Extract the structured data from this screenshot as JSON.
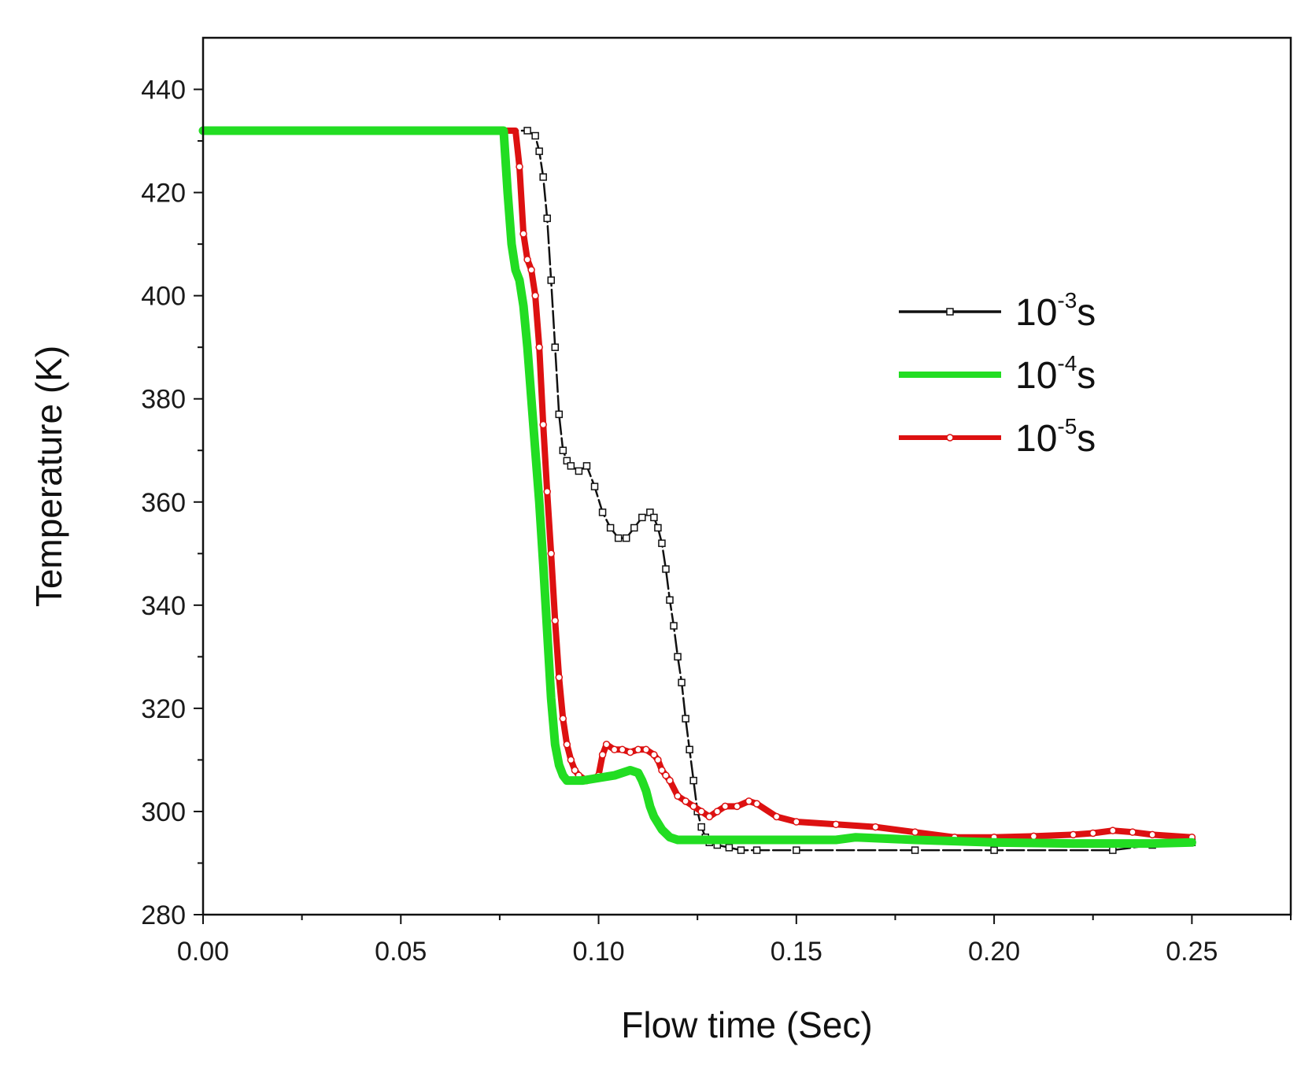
{
  "chart_data": {
    "type": "line",
    "xlabel": "Flow time (Sec)",
    "ylabel": "Temperature (K)",
    "xlim": [
      0,
      0.275
    ],
    "ylim": [
      280,
      450
    ],
    "xticks": [
      0.0,
      0.05,
      0.1,
      0.15,
      0.2,
      0.25
    ],
    "xtick_labels": [
      "0.00",
      "0.05",
      "0.10",
      "0.15",
      "0.20",
      "0.25"
    ],
    "yticks": [
      280,
      300,
      320,
      340,
      360,
      380,
      400,
      420,
      440
    ],
    "ytick_labels": [
      "280",
      "300",
      "320",
      "340",
      "360",
      "380",
      "400",
      "420",
      "440"
    ],
    "grid": false,
    "legend_position": "right-middle",
    "series": [
      {
        "name": "10-3s",
        "legend_base": "10",
        "legend_exp": "-3",
        "legend_unit": "s",
        "color": "#111111",
        "marker": "hollow-square",
        "x": [
          0.0,
          0.082,
          0.084,
          0.085,
          0.086,
          0.087,
          0.088,
          0.089,
          0.09,
          0.091,
          0.092,
          0.093,
          0.095,
          0.097,
          0.099,
          0.101,
          0.103,
          0.105,
          0.107,
          0.109,
          0.111,
          0.113,
          0.114,
          0.115,
          0.116,
          0.117,
          0.118,
          0.119,
          0.12,
          0.121,
          0.122,
          0.123,
          0.124,
          0.125,
          0.126,
          0.127,
          0.128,
          0.13,
          0.133,
          0.136,
          0.14,
          0.15,
          0.18,
          0.2,
          0.23,
          0.24,
          0.25
        ],
        "y": [
          432,
          432,
          431,
          428,
          423,
          415,
          403,
          390,
          377,
          370,
          368,
          367,
          366,
          367,
          363,
          358,
          355,
          353,
          353,
          355,
          357,
          358,
          357,
          355,
          352,
          347,
          341,
          336,
          330,
          325,
          318,
          312,
          306,
          300,
          297,
          295,
          294,
          293.5,
          293,
          292.5,
          292.5,
          292.5,
          292.5,
          292.5,
          292.5,
          293.5,
          294
        ]
      },
      {
        "name": "10-4s",
        "legend_base": "10",
        "legend_exp": "-4",
        "legend_unit": "s",
        "color": "#22dd22",
        "marker": "none",
        "x": [
          0.0,
          0.076,
          0.077,
          0.078,
          0.079,
          0.08,
          0.081,
          0.082,
          0.083,
          0.084,
          0.085,
          0.086,
          0.087,
          0.088,
          0.089,
          0.09,
          0.091,
          0.092,
          0.093,
          0.096,
          0.1,
          0.104,
          0.108,
          0.11,
          0.111,
          0.112,
          0.113,
          0.114,
          0.116,
          0.118,
          0.12,
          0.125,
          0.14,
          0.16,
          0.165,
          0.18,
          0.2,
          0.22,
          0.24,
          0.25
        ],
        "y": [
          432,
          432,
          420,
          410,
          405,
          403,
          398,
          390,
          380,
          370,
          360,
          348,
          335,
          322,
          313,
          309,
          307,
          306,
          306,
          306,
          306.5,
          307,
          308,
          307.5,
          306,
          304,
          301,
          299,
          296.5,
          295,
          294.5,
          294.5,
          294.5,
          294.5,
          295,
          294.5,
          294,
          293.8,
          293.8,
          294
        ]
      },
      {
        "name": "10-5s",
        "legend_base": "10",
        "legend_exp": "-5",
        "legend_unit": "s",
        "color": "#dd1111",
        "marker": "hollow-circle",
        "x": [
          0.0,
          0.079,
          0.08,
          0.081,
          0.082,
          0.083,
          0.084,
          0.085,
          0.086,
          0.087,
          0.088,
          0.089,
          0.09,
          0.091,
          0.092,
          0.093,
          0.094,
          0.095,
          0.097,
          0.099,
          0.1,
          0.101,
          0.102,
          0.104,
          0.106,
          0.108,
          0.11,
          0.112,
          0.114,
          0.115,
          0.116,
          0.117,
          0.118,
          0.12,
          0.122,
          0.124,
          0.126,
          0.128,
          0.13,
          0.132,
          0.135,
          0.138,
          0.14,
          0.145,
          0.15,
          0.16,
          0.17,
          0.18,
          0.19,
          0.2,
          0.21,
          0.22,
          0.225,
          0.23,
          0.235,
          0.24,
          0.25
        ],
        "y": [
          432,
          432,
          425,
          412,
          407,
          405,
          400,
          390,
          375,
          362,
          350,
          337,
          326,
          318,
          313,
          310,
          308,
          307,
          306,
          306.5,
          307,
          311,
          313,
          312,
          312,
          311.5,
          312,
          312,
          311,
          310,
          308,
          307,
          306,
          303,
          302,
          301,
          300,
          299,
          300,
          301,
          301,
          302,
          301.5,
          299,
          298,
          297.5,
          297,
          296,
          295,
          295,
          295.2,
          295.5,
          295.8,
          296.3,
          296,
          295.5,
          295
        ]
      }
    ]
  }
}
